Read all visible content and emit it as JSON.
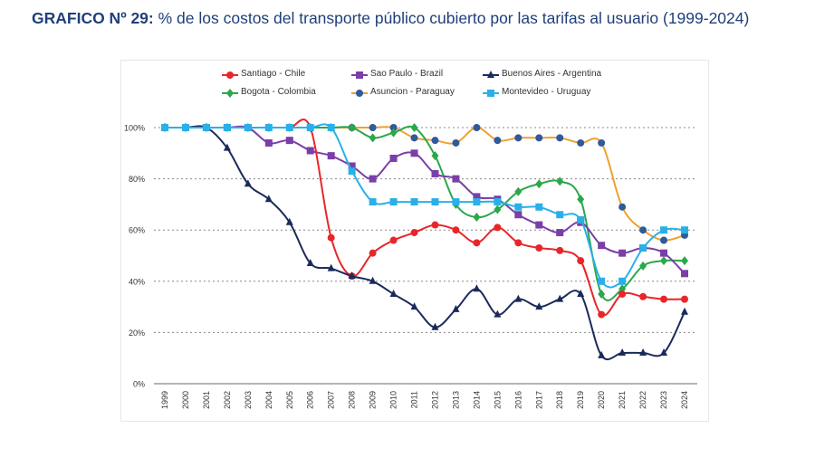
{
  "title": {
    "prefix": "GRAFICO Nº 29:",
    "text": " % de los costos del transporte público cubierto por las tarifas al usuario (1999-2024)"
  },
  "chart_data": {
    "type": "line",
    "title": "GRAFICO Nº 29: % de los costos del transporte público cubierto por las tarifas al usuario (1999-2024)",
    "x": [
      "1999",
      "2000",
      "2001",
      "2002",
      "2003",
      "2004",
      "2005",
      "2006",
      "2007",
      "2008",
      "2009",
      "2010",
      "2011",
      "2012",
      "2013",
      "2014",
      "2015",
      "2016",
      "2017",
      "2018",
      "2019",
      "2020",
      "2021",
      "2022",
      "2023",
      "2024"
    ],
    "ylim": [
      0,
      100
    ],
    "yticks": [
      "0%",
      "20%",
      "40%",
      "60%",
      "80%",
      "100%"
    ],
    "grid": true,
    "legend": "top",
    "series": [
      {
        "name": "Santiago - Chile",
        "color": "#e8262a",
        "marker": "circle",
        "values": [
          100,
          100,
          100,
          100,
          100,
          100,
          100,
          100,
          57,
          42,
          51,
          56,
          59,
          62,
          60,
          55,
          61,
          55,
          53,
          52,
          48,
          27,
          35,
          34,
          33,
          33
        ]
      },
      {
        "name": "Sao Paulo - Brazil",
        "color": "#7b3fa8",
        "marker": "square",
        "values": [
          100,
          100,
          100,
          100,
          100,
          94,
          95,
          91,
          89,
          85,
          80,
          88,
          90,
          82,
          80,
          73,
          72,
          66,
          62,
          59,
          63,
          54,
          51,
          53,
          51,
          43
        ]
      },
      {
        "name": "Buenos Aires - Argentina",
        "color": "#1b2a5c",
        "marker": "triangle",
        "values": [
          100,
          100,
          100,
          92,
          78,
          72,
          63,
          47,
          45,
          42,
          40,
          35,
          30,
          22,
          29,
          37,
          27,
          33,
          30,
          33,
          35,
          11,
          12,
          12,
          12,
          28
        ]
      },
      {
        "name": "Bogota - Colombia",
        "color": "#2aa84a",
        "marker": "diamond",
        "values": [
          100,
          100,
          100,
          100,
          100,
          100,
          100,
          100,
          100,
          100,
          96,
          98,
          100,
          89,
          70,
          65,
          68,
          75,
          78,
          79,
          72,
          35,
          37,
          46,
          48,
          48
        ]
      },
      {
        "name": "Asuncion - Paraguay",
        "color": "#f0a030",
        "marker_color": "#2f5a9c",
        "marker": "circle",
        "values": [
          100,
          100,
          100,
          100,
          100,
          100,
          100,
          100,
          100,
          100,
          100,
          100,
          96,
          95,
          94,
          100,
          95,
          96,
          96,
          96,
          94,
          94,
          69,
          60,
          56,
          58
        ]
      },
      {
        "name": "Montevideo - Uruguay",
        "color": "#2ab0e8",
        "marker": "square",
        "values": [
          100,
          100,
          100,
          100,
          100,
          100,
          100,
          100,
          100,
          83,
          71,
          71,
          71,
          71,
          71,
          71,
          71,
          69,
          69,
          66,
          64,
          40,
          40,
          53,
          60,
          60
        ]
      }
    ]
  }
}
